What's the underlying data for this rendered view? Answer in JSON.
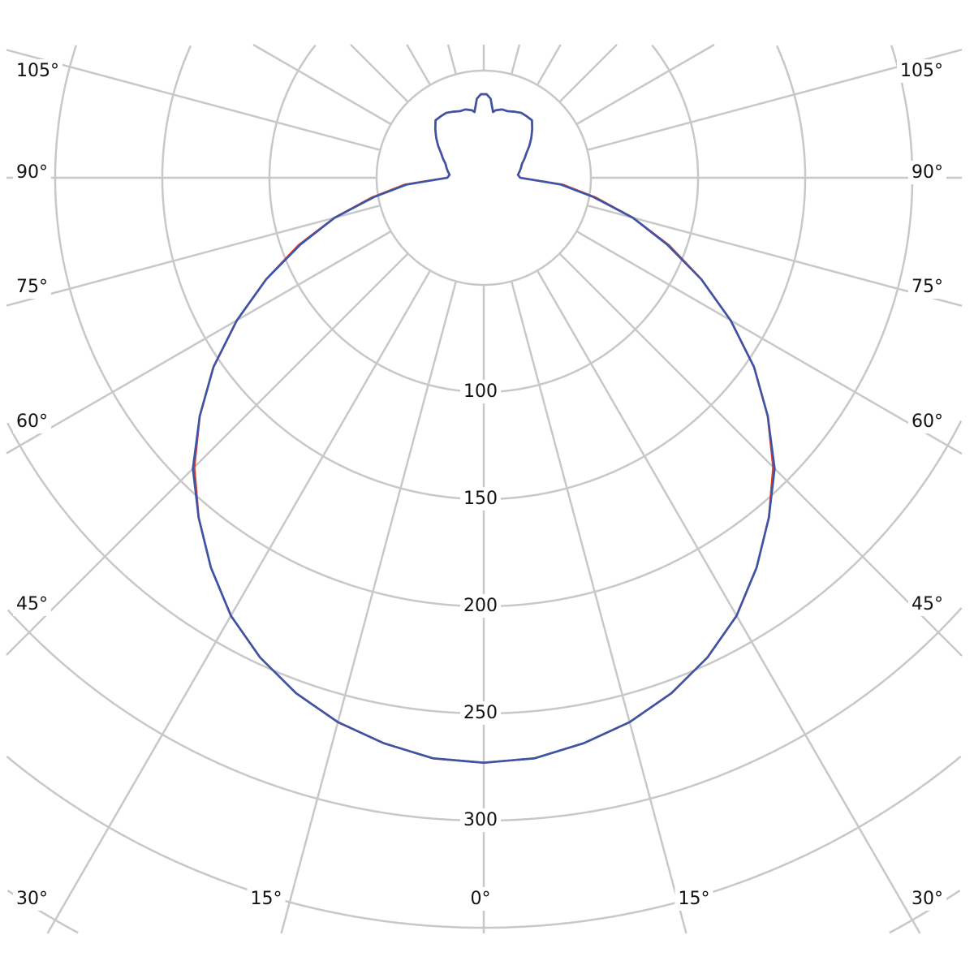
{
  "chart_data": {
    "type": "polar-line",
    "radial_ticks": [
      100,
      150,
      200,
      250,
      300
    ],
    "radial_grid": [
      50,
      100,
      150,
      200,
      250,
      300,
      350,
      400,
      450
    ],
    "rmax_shown": 350,
    "angle_step_deg": 15,
    "angle_labels_left": [
      "105°",
      "90°",
      "75°",
      "60°",
      "45°",
      "30°",
      "15°"
    ],
    "angle_labels_right": [
      "105°",
      "90°",
      "75°",
      "60°",
      "45°",
      "30°",
      "15°"
    ],
    "angle_label_bottom": "0°",
    "grid": true,
    "grid_color": "#c8c8c8",
    "angles": [
      0,
      5,
      10,
      15,
      20,
      25,
      30,
      35,
      40,
      45,
      50,
      55,
      60,
      65,
      70,
      75,
      80,
      85,
      90,
      95,
      100,
      105,
      110,
      115,
      120,
      125,
      130,
      135,
      140,
      145,
      150,
      155,
      160,
      165,
      170,
      172,
      175,
      178,
      180
    ],
    "series": [
      {
        "color": "#e0402a",
        "values": [
          273,
          272,
          268,
          263,
          256,
          247,
          236,
          222,
          207,
          191,
          173,
          154,
          133,
          112,
          92,
          72,
          53,
          37,
          17,
          16,
          17,
          18,
          19,
          21,
          23,
          26,
          29,
          32,
          35,
          35,
          35,
          34,
          33,
          33,
          32,
          31,
          37,
          39,
          39
        ]
      },
      {
        "color": "#3a55a8",
        "values": [
          273,
          272,
          268,
          263,
          256,
          247,
          236,
          222,
          207,
          192,
          173,
          154,
          133,
          112,
          91,
          72,
          52,
          36,
          17,
          16,
          17,
          18,
          19,
          21,
          23,
          26,
          29,
          32,
          35,
          35,
          35,
          34,
          33,
          33,
          32,
          31,
          37,
          39,
          39
        ]
      }
    ]
  }
}
